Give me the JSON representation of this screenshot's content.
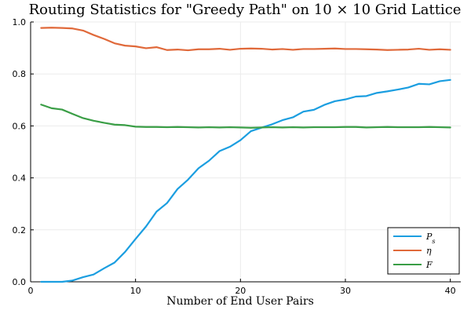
{
  "chart_data": {
    "type": "line",
    "title": "Routing Statistics for \"Greedy Path\" on 10 × 10 Grid Lattice",
    "xlabel": "Number of End User Pairs",
    "ylabel": "",
    "xlim": [
      0,
      41
    ],
    "ylim": [
      0,
      1
    ],
    "xticks": [
      0,
      10,
      20,
      30,
      40
    ],
    "yticks": [
      0.0,
      0.2,
      0.4,
      0.6,
      0.8,
      1.0
    ],
    "ytick_labels": [
      "0.0",
      "0.2",
      "0.4",
      "0.6",
      "0.8",
      "1.0"
    ],
    "grid": true,
    "legend_position": "bottom-right",
    "x": [
      1,
      2,
      3,
      4,
      5,
      6,
      7,
      8,
      9,
      10,
      11,
      12,
      13,
      14,
      15,
      16,
      17,
      18,
      19,
      20,
      21,
      22,
      23,
      24,
      25,
      26,
      27,
      28,
      29,
      30,
      31,
      32,
      33,
      34,
      35,
      36,
      37,
      38,
      39,
      40
    ],
    "series": [
      {
        "name": "P_s",
        "legend": "Ps",
        "color": "#1b9ee0",
        "values": [
          0.0,
          0.0,
          0.0,
          0.005,
          0.018,
          0.028,
          0.052,
          0.074,
          0.115,
          0.165,
          0.213,
          0.27,
          0.303,
          0.357,
          0.393,
          0.437,
          0.466,
          0.503,
          0.52,
          0.545,
          0.58,
          0.593,
          0.606,
          0.622,
          0.633,
          0.655,
          0.662,
          0.681,
          0.695,
          0.702,
          0.713,
          0.715,
          0.727,
          0.733,
          0.74,
          0.748,
          0.762,
          0.76,
          0.772,
          0.777
        ]
      },
      {
        "name": "η",
        "legend": "η",
        "color": "#e0693a",
        "values": [
          0.977,
          0.978,
          0.977,
          0.975,
          0.967,
          0.95,
          0.935,
          0.918,
          0.909,
          0.906,
          0.899,
          0.903,
          0.892,
          0.894,
          0.891,
          0.895,
          0.895,
          0.897,
          0.893,
          0.897,
          0.898,
          0.897,
          0.894,
          0.896,
          0.893,
          0.896,
          0.896,
          0.897,
          0.898,
          0.896,
          0.896,
          0.895,
          0.894,
          0.892,
          0.893,
          0.894,
          0.897,
          0.893,
          0.895,
          0.893
        ]
      },
      {
        "name": "F",
        "legend": "F",
        "color": "#3a9e46",
        "values": [
          0.682,
          0.668,
          0.663,
          0.646,
          0.63,
          0.62,
          0.612,
          0.605,
          0.603,
          0.597,
          0.596,
          0.596,
          0.595,
          0.596,
          0.595,
          0.594,
          0.595,
          0.594,
          0.595,
          0.594,
          0.593,
          0.594,
          0.595,
          0.594,
          0.595,
          0.594,
          0.595,
          0.595,
          0.595,
          0.596,
          0.596,
          0.594,
          0.595,
          0.596,
          0.595,
          0.595,
          0.595,
          0.596,
          0.595,
          0.594
        ]
      }
    ]
  }
}
